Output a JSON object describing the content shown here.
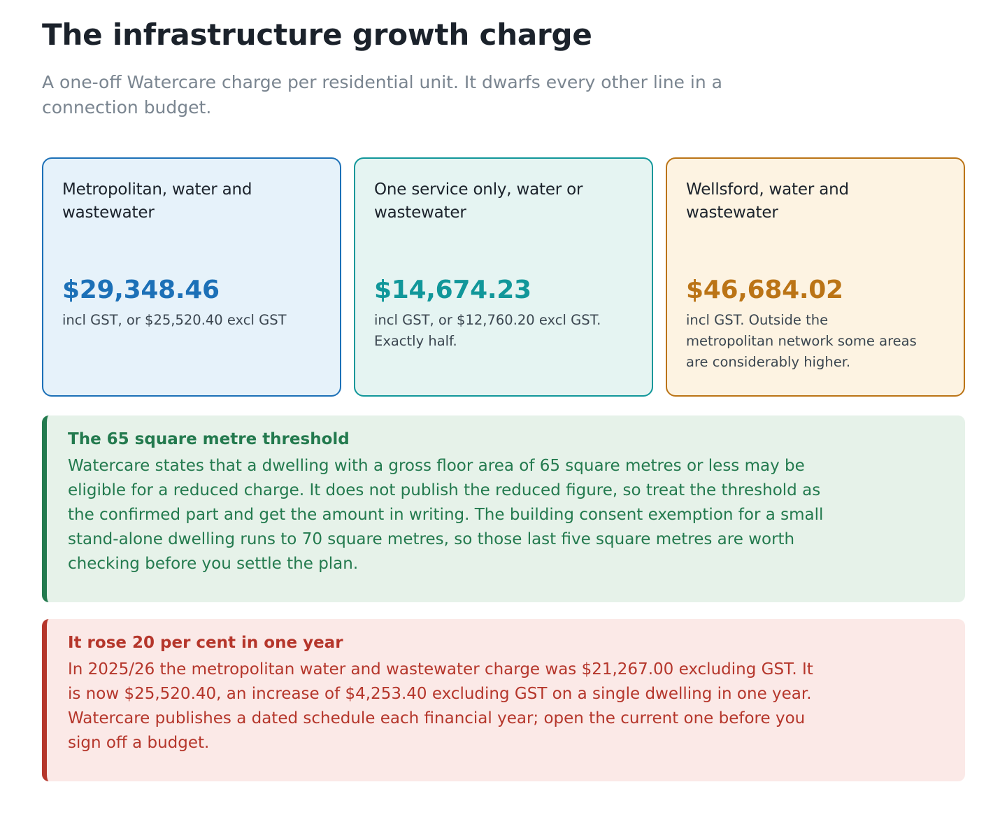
{
  "header": {
    "title": "The infrastructure growth charge",
    "subtitle": "A one-off Watercare charge per residential unit. It dwarfs every other line in a connection budget."
  },
  "cards": [
    {
      "label": "Metropolitan, water and wastewater",
      "amount": "$29,348.46",
      "note": "incl GST, or $25,520.40 excl GST",
      "accent": "#1c70b7"
    },
    {
      "label": "One service only, water or wastewater",
      "amount": "$14,674.23",
      "note": "incl GST, or $12,760.20 excl GST. Exactly half.",
      "accent": "#11979a"
    },
    {
      "label": "Wellsford, water and wastewater",
      "amount": "$46,684.02",
      "note": "incl GST. Outside the metropolitan network some areas are considerably higher.",
      "accent": "#bb7416"
    }
  ],
  "callouts": {
    "threshold": {
      "title": "The 65 square metre threshold",
      "body": "Watercare states that a dwelling with a gross floor area of 65 square metres or less may be eligible for a reduced charge. It does not publish the reduced figure, so treat the threshold as the confirmed part and get the amount in writing. The building consent exemption for a small stand-alone dwelling runs to 70 square metres, so those last five square metres are worth checking before you settle the plan.",
      "accent": "#237a4e"
    },
    "increase": {
      "title": "It rose 20 per cent in one year",
      "body": "In 2025/26 the metropolitan water and wastewater charge was $21,267.00 excluding GST. It is now $25,520.40, an increase of $4,253.40 excluding GST on a single dwelling in one year. Watercare publishes a dated schedule each financial year; open the current one before you sign off a budget.",
      "accent": "#b5362b"
    }
  }
}
